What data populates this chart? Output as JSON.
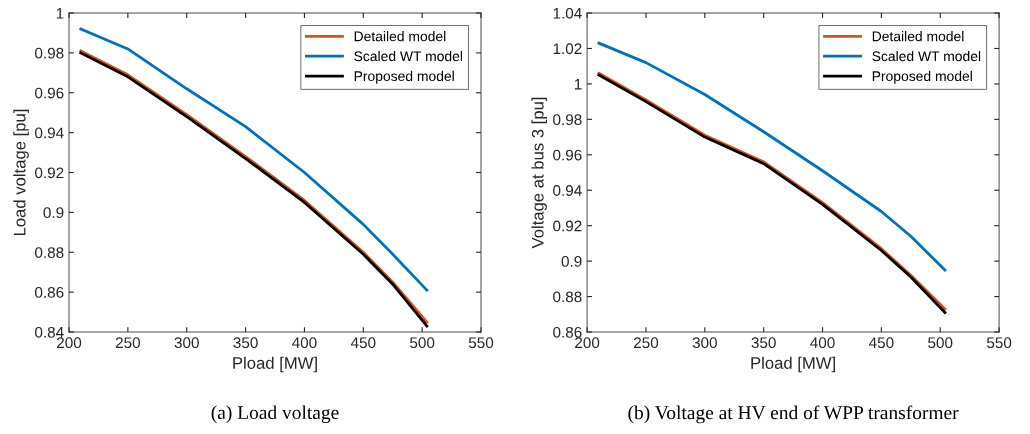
{
  "chart_data": [
    {
      "type": "line",
      "xlabel": "Pload [MW]",
      "ylabel": "Load voltage [pu]",
      "annotations": [
        "(a) Load voltage"
      ],
      "xlim": [
        200,
        550
      ],
      "ylim": [
        0.84,
        1
      ],
      "xticks": [
        200,
        250,
        300,
        350,
        400,
        450,
        500,
        550
      ],
      "yticks": [
        0.84,
        0.86,
        0.88,
        0.9,
        0.92,
        0.94,
        0.96,
        0.98,
        1
      ],
      "grid": false,
      "legend": "top right",
      "marker": "none",
      "line_style": "solid",
      "x": [
        210,
        250,
        300,
        350,
        400,
        450,
        475,
        504
      ],
      "series": [
        {
          "name": "Detailed model",
          "color": "#d95319",
          "values": [
            0.981,
            0.969,
            0.949,
            0.928,
            0.906,
            0.88,
            0.865,
            0.845
          ]
        },
        {
          "name": "Scaled WT model",
          "color": "#0072bd",
          "values": [
            0.992,
            0.982,
            0.962,
            0.943,
            0.92,
            0.894,
            0.879,
            0.861
          ]
        },
        {
          "name": "Proposed model",
          "color": "#000000",
          "values": [
            0.98,
            0.968,
            0.948,
            0.927,
            0.905,
            0.879,
            0.864,
            0.843
          ]
        }
      ]
    },
    {
      "type": "line",
      "xlabel": "Pload [MW]",
      "ylabel": "Voltage at bus 3 [pu]",
      "annotations": [
        "(b) Voltage at HV end of WPP transformer"
      ],
      "xlim": [
        200,
        550
      ],
      "ylim": [
        0.86,
        1.04
      ],
      "xticks": [
        200,
        250,
        300,
        350,
        400,
        450,
        500,
        550
      ],
      "yticks": [
        0.86,
        0.88,
        0.9,
        0.92,
        0.94,
        0.96,
        0.98,
        1,
        1.02,
        1.04
      ],
      "grid": false,
      "legend": "top right",
      "marker": "none",
      "line_style": "solid",
      "x": [
        210,
        250,
        300,
        350,
        400,
        450,
        475,
        504
      ],
      "series": [
        {
          "name": "Detailed model",
          "color": "#d95319",
          "values": [
            1.006,
            0.991,
            0.971,
            0.956,
            0.933,
            0.907,
            0.892,
            0.873
          ]
        },
        {
          "name": "Scaled WT model",
          "color": "#0072bd",
          "values": [
            1.023,
            1.012,
            0.994,
            0.973,
            0.951,
            0.928,
            0.914,
            0.895
          ]
        },
        {
          "name": "Proposed model",
          "color": "#000000",
          "values": [
            1.005,
            0.99,
            0.97,
            0.955,
            0.932,
            0.906,
            0.891,
            0.871
          ]
        }
      ]
    }
  ]
}
